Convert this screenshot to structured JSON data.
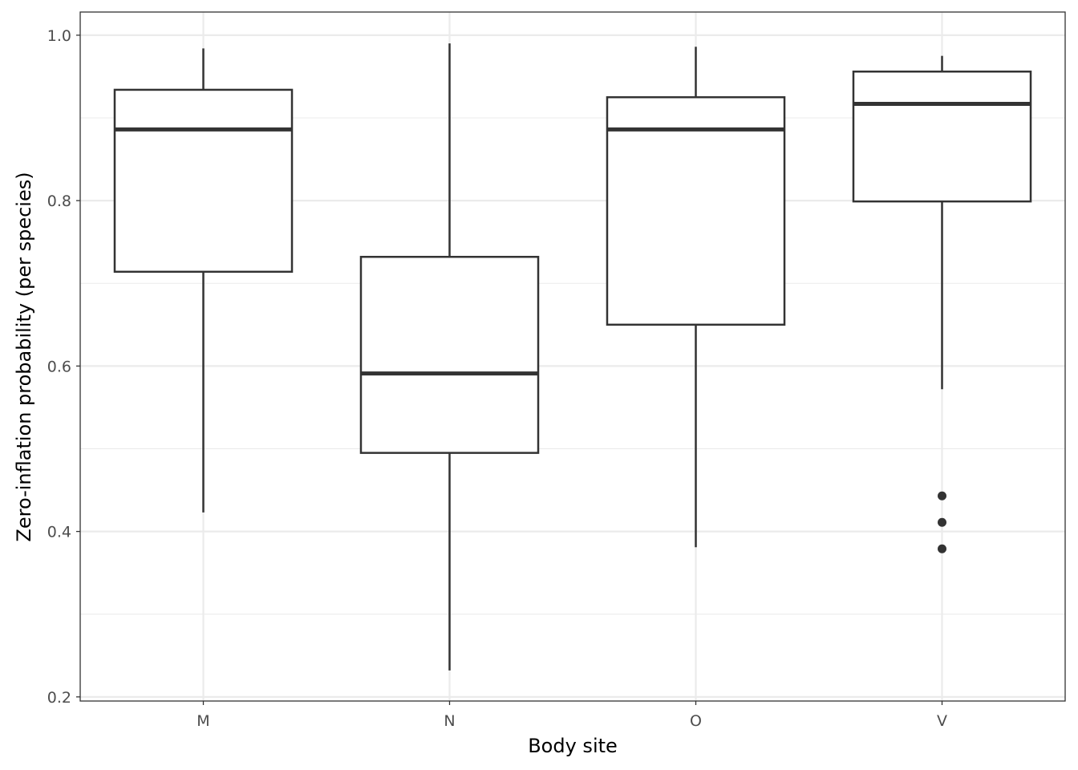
{
  "chart_data": {
    "type": "boxplot",
    "xlabel": "Body site",
    "ylabel": "Zero-inflation probability (per species)",
    "categories": [
      "M",
      "N",
      "O",
      "V"
    ],
    "ylim": [
      0.195,
      1.028
    ],
    "y_ticks": [
      0.2,
      0.4,
      0.6,
      0.8,
      1.0
    ],
    "y_tick_labels": [
      "0.2",
      "0.4",
      "0.6",
      "0.8",
      "1.0"
    ],
    "y_minor_ticks": [
      0.3,
      0.5,
      0.7,
      0.9
    ],
    "grid": true,
    "boxes": [
      {
        "category": "M",
        "whisker_low": 0.423,
        "q1": 0.714,
        "median": 0.886,
        "q3": 0.934,
        "whisker_high": 0.984,
        "outliers": []
      },
      {
        "category": "N",
        "whisker_low": 0.232,
        "q1": 0.495,
        "median": 0.591,
        "q3": 0.732,
        "whisker_high": 0.99,
        "outliers": []
      },
      {
        "category": "O",
        "whisker_low": 0.381,
        "q1": 0.65,
        "median": 0.886,
        "q3": 0.925,
        "whisker_high": 0.986,
        "outliers": []
      },
      {
        "category": "V",
        "whisker_low": 0.572,
        "q1": 0.799,
        "median": 0.917,
        "q3": 0.956,
        "whisker_high": 0.975,
        "outliers": [
          0.443,
          0.411,
          0.379
        ]
      }
    ],
    "colors": {
      "panel_border": "#333333",
      "grid": "#ebebeb",
      "box_line": "#333333",
      "outlier": "#333333",
      "tick_label": "#4d4d4d",
      "axis_title": "#000000"
    }
  }
}
